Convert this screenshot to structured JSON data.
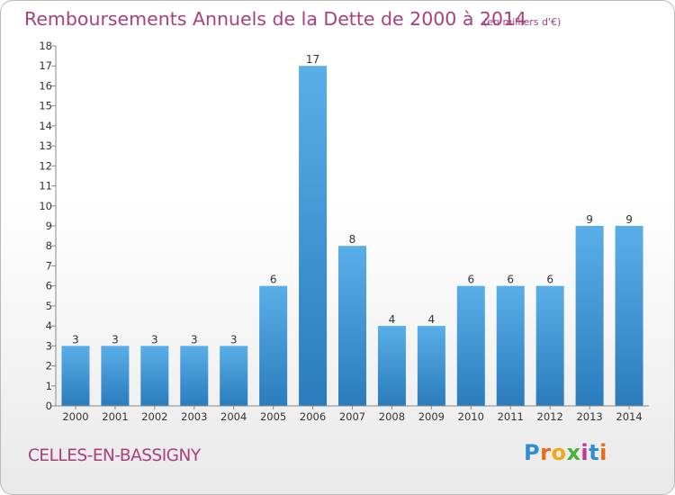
{
  "header": {
    "title": "Remboursements Annuels de la Dette de 2000 à 2014",
    "unit_note": "(en milliers d'€)"
  },
  "footer": {
    "commune": "CELLES-EN-BASSIGNY"
  },
  "logo": {
    "letters": [
      "P",
      "r",
      "o",
      "x",
      "i",
      "t",
      "i"
    ],
    "colors": [
      "#2e8fd2",
      "#e86c1a",
      "#f2a81d",
      "#4caf3a",
      "#c23a8c",
      "#2e8fd2",
      "#e86c1a"
    ]
  },
  "colors": {
    "bar_top": "#5aaee8",
    "bar_bottom": "#2a7cbd",
    "text": "#a8407c",
    "axis_text": "#333333"
  },
  "chart_data": {
    "type": "bar",
    "categories": [
      "2000",
      "2001",
      "2002",
      "2003",
      "2004",
      "2005",
      "2006",
      "2007",
      "2008",
      "2009",
      "2010",
      "2011",
      "2012",
      "2013",
      "2014"
    ],
    "values": [
      3,
      3,
      3,
      3,
      3,
      6,
      17,
      8,
      4,
      4,
      6,
      6,
      6,
      9,
      9
    ],
    "data_labels": [
      "3",
      "3",
      "3",
      "3",
      "3",
      "6",
      "17",
      "8",
      "4",
      "4",
      "6",
      "6",
      "6",
      "9",
      "9"
    ],
    "y_ticks": [
      "0",
      "1",
      "2",
      "3",
      "4",
      "5",
      "6",
      "7",
      "8",
      "9",
      "10",
      "11",
      "12",
      "13",
      "14",
      "15",
      "16",
      "17",
      "18"
    ],
    "ylim": [
      0,
      18
    ],
    "grid": false
  }
}
